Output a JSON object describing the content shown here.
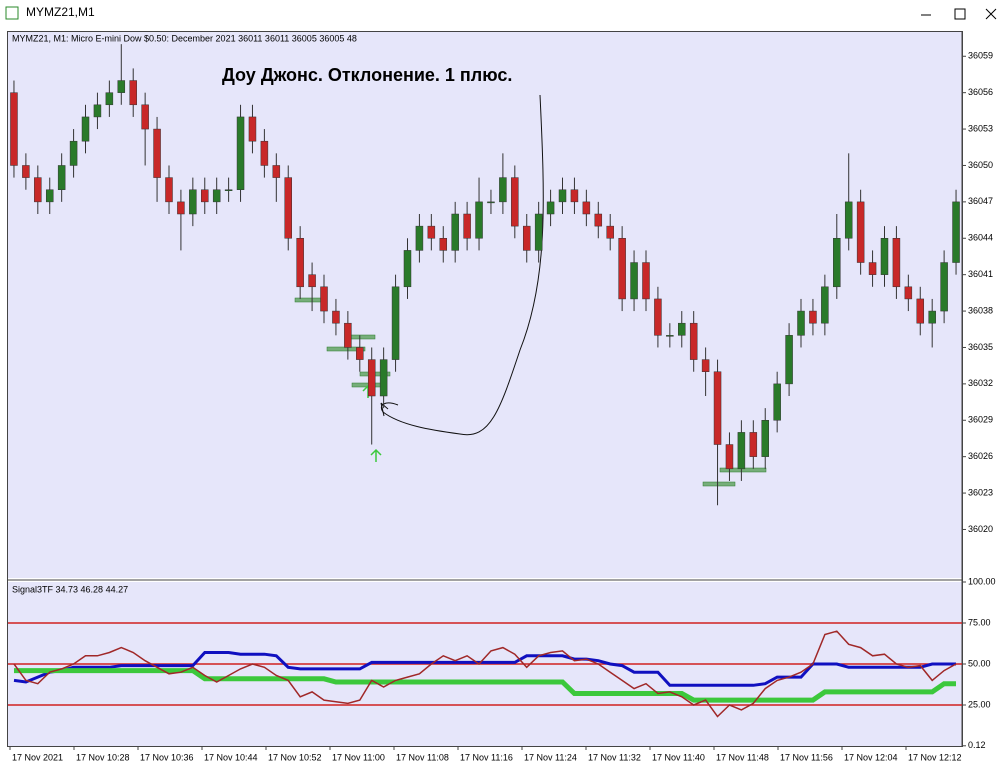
{
  "window": {
    "title": "MYMZ21,M1"
  },
  "chart_data": [
    {
      "type": "candlestick",
      "header": "MYMZ21, M1:  Micro E-mini Dow $0.50: December 2021  36011 36011 36005 36005  48",
      "title": "Доу Джонс. Отклонение. 1 плюс.",
      "up_color": "#2a7a2a",
      "down_color": "#c82828",
      "open": [
        36056,
        36050,
        36049,
        36047,
        36048,
        36050,
        36052,
        36054,
        36055,
        36056,
        36057,
        36055,
        36053,
        36049,
        36047,
        36046,
        36048,
        36047,
        36048,
        36048,
        36054,
        36052,
        36050,
        36049,
        36044,
        36041,
        36040,
        36038,
        36037,
        36035,
        36034,
        36031,
        36034,
        36040,
        36043,
        36045,
        36044,
        36043,
        36046,
        36044,
        36047,
        36047,
        36049,
        36045,
        36043,
        36046,
        36047,
        36048,
        36047,
        36046,
        36045,
        36044,
        36039,
        36042,
        36039,
        36036,
        36036,
        36037,
        36034,
        36033,
        36027,
        36025,
        36028,
        36026,
        36029,
        36032,
        36036,
        36038,
        36037,
        36040,
        36044,
        36047,
        36042,
        36041,
        36044,
        36040,
        36039,
        36037,
        36038,
        36042
      ],
      "high": [
        36057,
        36051,
        36050,
        36049,
        36051,
        36053,
        36055,
        36056,
        36057,
        36060,
        36058,
        36056,
        36054,
        36050,
        36048,
        36049,
        36049,
        36049,
        36049,
        36055,
        36055,
        36053,
        36051,
        36050,
        36045,
        36042,
        36041,
        36039,
        36038,
        36036,
        36035,
        36035,
        36041,
        36044,
        36046,
        36046,
        36045,
        36047,
        36047,
        36049,
        36048,
        36051,
        36050,
        36046,
        36047,
        36048,
        36049,
        36049,
        36048,
        36047,
        36046,
        36045,
        36043,
        36043,
        36040,
        36037,
        36038,
        36038,
        36035,
        36034,
        36028,
        36029,
        36029,
        36030,
        36033,
        36037,
        36039,
        36039,
        36041,
        36046,
        36051,
        36048,
        36043,
        36045,
        36045,
        36041,
        36040,
        36039,
        36043,
        36048
      ],
      "low": [
        36049,
        36048,
        36046,
        36046,
        36047,
        36049,
        36051,
        36053,
        36054,
        36055,
        36054,
        36050,
        36047,
        36046,
        36043,
        36045,
        36046,
        36046,
        36047,
        36047,
        36051,
        36049,
        36047,
        36043,
        36039,
        36038,
        36037,
        36036,
        36034,
        36033,
        36027,
        36030,
        36033,
        36039,
        36042,
        36043,
        36042,
        36042,
        36043,
        36043,
        36046,
        36046,
        36044,
        36042,
        36042,
        36045,
        36046,
        36046,
        36045,
        36044,
        36043,
        36038,
        36038,
        36038,
        36035,
        36035,
        36035,
        36033,
        36031,
        36022,
        36024,
        36024,
        36025,
        36025,
        36028,
        36031,
        36035,
        36036,
        36036,
        36039,
        36043,
        36041,
        36040,
        36040,
        36039,
        36038,
        36036,
        36035,
        36037,
        36041
      ],
      "close": [
        36050,
        36049,
        36047,
        36048,
        36050,
        36052,
        36054,
        36055,
        36056,
        36057,
        36055,
        36053,
        36049,
        36047,
        36046,
        36048,
        36047,
        36048,
        36048,
        36054,
        36052,
        36050,
        36049,
        36044,
        36040,
        36040,
        36038,
        36037,
        36035,
        36034,
        36031,
        36034,
        36040,
        36043,
        36045,
        36044,
        36043,
        36046,
        36044,
        36047,
        36047,
        36049,
        36045,
        36043,
        36046,
        36047,
        36048,
        36047,
        36046,
        36045,
        36044,
        36039,
        36042,
        36039,
        36036,
        36036,
        36037,
        36034,
        36033,
        36027,
        36025,
        36028,
        36026,
        36029,
        36032,
        36036,
        36038,
        36037,
        36040,
        36044,
        36047,
        36042,
        36041,
        36044,
        36040,
        36039,
        36037,
        36038,
        36042,
        36047
      ],
      "ylim": [
        36016,
        36061
      ],
      "yticks": [
        36059,
        36056,
        36053,
        36050,
        36047,
        36044,
        36041,
        36038,
        36035,
        36032,
        36029,
        36026,
        36023,
        36020
      ],
      "x_labels": [
        "17 Nov 2021",
        "17 Nov 10:28",
        "17 Nov 10:36",
        "17 Nov 10:44",
        "17 Nov 10:52",
        "17 Nov 11:00",
        "17 Nov 11:08",
        "17 Nov 11:16",
        "17 Nov 11:24",
        "17 Nov 11:32",
        "17 Nov 11:40",
        "17 Nov 11:48",
        "17 Nov 11:56",
        "17 Nov 12:04",
        "17 Nov 12:12"
      ]
    },
    {
      "type": "line",
      "title": "Signal3TF 34.73 46.28 44.27",
      "ylim": [
        0,
        100
      ],
      "yticks": [
        {
          "value": 100,
          "label": "100.00"
        },
        {
          "value": 75,
          "label": "75.00"
        },
        {
          "value": 50,
          "label": "50.00"
        },
        {
          "value": 25,
          "label": "25.00"
        },
        {
          "value": 0.12,
          "label": "0.12"
        }
      ],
      "levels": [
        75,
        50,
        25
      ],
      "level_color": "#d02020",
      "series": [
        {
          "color": "#1010c0",
          "values": [
            40,
            39,
            42,
            45,
            46,
            48,
            48,
            48,
            48,
            49,
            49,
            49,
            49,
            49,
            49,
            49,
            57,
            57,
            57,
            56,
            56,
            56,
            55,
            48,
            47,
            47,
            47,
            47,
            47,
            47,
            51,
            51,
            51,
            51,
            51,
            51,
            51,
            51,
            51,
            51,
            51,
            51,
            51,
            55,
            55,
            55,
            55,
            53,
            53,
            52,
            50,
            49,
            45,
            45,
            45,
            37,
            37,
            37,
            37,
            37,
            37,
            37,
            37,
            38,
            42,
            42,
            42,
            50,
            50,
            50,
            48,
            48,
            48,
            48,
            48,
            48,
            48,
            50,
            50,
            50
          ]
        },
        {
          "color": "#3cc83c",
          "values": [
            46,
            46,
            46,
            46,
            46,
            46,
            46,
            46,
            46,
            46,
            46,
            46,
            46,
            46,
            46,
            46,
            41,
            41,
            41,
            41,
            41,
            41,
            41,
            41,
            41,
            41,
            41,
            39,
            39,
            39,
            39,
            39,
            39,
            39,
            39,
            39,
            39,
            39,
            39,
            39,
            39,
            39,
            39,
            39,
            39,
            39,
            39,
            32,
            32,
            32,
            32,
            32,
            32,
            32,
            32,
            32,
            32,
            28,
            28,
            28,
            28,
            28,
            28,
            28,
            28,
            28,
            28,
            28,
            33,
            33,
            33,
            33,
            33,
            33,
            33,
            33,
            33,
            33,
            38,
            38
          ]
        },
        {
          "color": "#a02828",
          "values": [
            50,
            40,
            38,
            45,
            47,
            50,
            55,
            55,
            57,
            60,
            57,
            52,
            48,
            44,
            45,
            48,
            43,
            39,
            43,
            47,
            50,
            48,
            43,
            40,
            30,
            33,
            28,
            27,
            26,
            28,
            40,
            36,
            40,
            42,
            44,
            50,
            55,
            52,
            55,
            50,
            58,
            60,
            56,
            48,
            55,
            57,
            58,
            52,
            53,
            50,
            45,
            40,
            35,
            38,
            32,
            33,
            30,
            25,
            28,
            18,
            25,
            22,
            26,
            35,
            40,
            42,
            45,
            50,
            68,
            70,
            62,
            60,
            55,
            56,
            50,
            48,
            49,
            40,
            46,
            50
          ]
        }
      ]
    }
  ]
}
